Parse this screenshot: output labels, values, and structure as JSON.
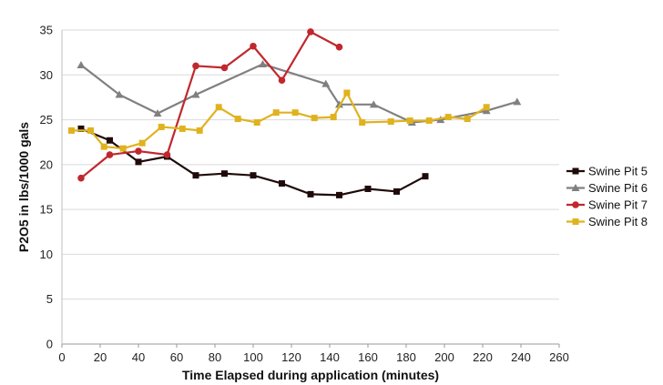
{
  "chart_data": {
    "type": "line",
    "title": "",
    "xlabel": "Time Elapsed during application (minutes)",
    "ylabel": "P2O5 in lbs/1000 gals",
    "xlim": [
      0,
      260
    ],
    "ylim": [
      0,
      35
    ],
    "xticks": [
      0,
      20,
      40,
      60,
      80,
      100,
      120,
      140,
      160,
      180,
      200,
      220,
      240,
      260
    ],
    "yticks": [
      0,
      5,
      10,
      15,
      20,
      25,
      30,
      35
    ],
    "grid": "horizontal",
    "legend_position": "right",
    "series": [
      {
        "name": "Swine Pit 5",
        "color": "#1f0a0a",
        "marker": "square",
        "x": [
          10,
          25,
          40,
          55,
          70,
          85,
          100,
          115,
          130,
          145,
          160,
          175,
          190
        ],
        "y": [
          24.0,
          22.7,
          20.3,
          20.9,
          18.8,
          19.0,
          18.8,
          17.9,
          16.7,
          16.6,
          17.3,
          17.0,
          18.7
        ]
      },
      {
        "name": "Swine Pit 6",
        "color": "#808080",
        "marker": "triangle",
        "x": [
          10,
          30,
          50,
          70,
          105,
          138,
          145,
          163,
          183,
          198,
          222,
          238
        ],
        "y": [
          31.1,
          27.8,
          25.7,
          27.8,
          31.2,
          29.0,
          26.7,
          26.7,
          24.7,
          25.0,
          26.0,
          27.0
        ]
      },
      {
        "name": "Swine Pit 7",
        "color": "#c0282d",
        "marker": "circle",
        "x": [
          10,
          25,
          40,
          55,
          70,
          85,
          100,
          115,
          130,
          145
        ],
        "y": [
          18.5,
          21.1,
          21.5,
          21.1,
          31.0,
          30.8,
          33.2,
          29.4,
          34.8,
          33.1
        ]
      },
      {
        "name": "Swine Pit 8",
        "color": "#e0b21e",
        "marker": "square",
        "x": [
          5,
          15,
          22,
          32,
          42,
          52,
          63,
          72,
          82,
          92,
          102,
          112,
          122,
          132,
          142,
          149,
          157,
          172,
          182,
          192,
          202,
          212,
          222
        ],
        "y": [
          23.8,
          23.8,
          22.0,
          21.8,
          22.4,
          24.2,
          24.0,
          23.8,
          26.4,
          25.1,
          24.7,
          25.8,
          25.8,
          25.2,
          25.3,
          28.0,
          24.7,
          24.8,
          24.9,
          24.9,
          25.3,
          25.1,
          26.4
        ]
      }
    ]
  }
}
